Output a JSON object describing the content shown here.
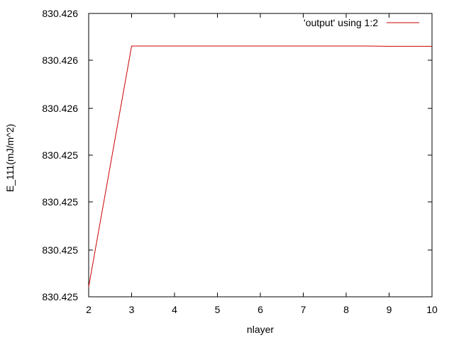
{
  "chart_data": {
    "type": "line",
    "title": "",
    "xlabel": "nlayer",
    "ylabel": "E_111(mJ/m^2)",
    "xlim": [
      2,
      10
    ],
    "ylim": [
      830.4245,
      830.4265
    ],
    "xticks": [
      2,
      3,
      4,
      5,
      6,
      7,
      8,
      9,
      10
    ],
    "yticks": [
      {
        "value": 830.4245,
        "label": "830.425"
      },
      {
        "value": 830.42483,
        "label": "830.425"
      },
      {
        "value": 830.42517,
        "label": "830.425"
      },
      {
        "value": 830.4255,
        "label": "830.425"
      },
      {
        "value": 830.42583,
        "label": "830.426"
      },
      {
        "value": 830.42617,
        "label": "830.426"
      },
      {
        "value": 830.4265,
        "label": "830.426"
      }
    ],
    "series": [
      {
        "name": "'output' using 1:2",
        "color": "#cc0000",
        "x": [
          2,
          3,
          4,
          5,
          6,
          7,
          8,
          8.5,
          9,
          10
        ],
        "y": [
          830.42457,
          830.42627,
          830.42627,
          830.42627,
          830.42627,
          830.42627,
          830.42627,
          830.42627,
          830.426268,
          830.426268
        ]
      }
    ],
    "legend": "top-right",
    "grid": false
  }
}
